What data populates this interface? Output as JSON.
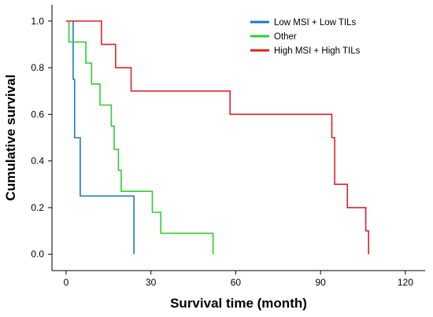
{
  "chart_data": {
    "type": "line",
    "step": true,
    "xlabel": "Survival time (month)",
    "ylabel": "Cumulative survival",
    "xlim": [
      -5,
      127
    ],
    "ylim": [
      -0.07,
      1.07
    ],
    "xticks": [
      0,
      30,
      60,
      90,
      120
    ],
    "yticks": [
      0.0,
      0.2,
      0.4,
      0.6,
      0.8,
      1.0
    ],
    "xtick_labels": [
      "0",
      "30",
      "60",
      "90",
      "120"
    ],
    "ytick_labels": [
      "0.0",
      "0.2",
      "0.4",
      "0.6",
      "0.8",
      "1.0"
    ],
    "grid": false,
    "legend_position": "top-right",
    "series": [
      {
        "name": "Low MSI + Low TILs",
        "color": "#1f77c4",
        "points": [
          [
            0,
            1.0
          ],
          [
            2.5,
            1.0
          ],
          [
            2.5,
            0.75
          ],
          [
            3,
            0.75
          ],
          [
            3,
            0.5
          ],
          [
            5,
            0.5
          ],
          [
            5,
            0.25
          ],
          [
            24,
            0.25
          ],
          [
            24,
            0.0
          ]
        ]
      },
      {
        "name": "Other",
        "color": "#33cc33",
        "points": [
          [
            1,
            1.0
          ],
          [
            1,
            0.91
          ],
          [
            7,
            0.91
          ],
          [
            7,
            0.82
          ],
          [
            9,
            0.82
          ],
          [
            9,
            0.73
          ],
          [
            12,
            0.73
          ],
          [
            12,
            0.64
          ],
          [
            16,
            0.64
          ],
          [
            16,
            0.55
          ],
          [
            17,
            0.55
          ],
          [
            17,
            0.45
          ],
          [
            18.5,
            0.45
          ],
          [
            18.5,
            0.36
          ],
          [
            19.5,
            0.36
          ],
          [
            19.5,
            0.27
          ],
          [
            30.5,
            0.27
          ],
          [
            30.5,
            0.18
          ],
          [
            33.5,
            0.18
          ],
          [
            33.5,
            0.09
          ],
          [
            52,
            0.09
          ],
          [
            52,
            0.0
          ]
        ]
      },
      {
        "name": "High MSI + High TILs",
        "color": "#e0202a",
        "points": [
          [
            0,
            1.0
          ],
          [
            12.5,
            1.0
          ],
          [
            12.5,
            0.9
          ],
          [
            17.5,
            0.9
          ],
          [
            17.5,
            0.8
          ],
          [
            23,
            0.8
          ],
          [
            23,
            0.7
          ],
          [
            58,
            0.7
          ],
          [
            58,
            0.6
          ],
          [
            94,
            0.6
          ],
          [
            94,
            0.5
          ],
          [
            95,
            0.5
          ],
          [
            95,
            0.3
          ],
          [
            99.5,
            0.3
          ],
          [
            99.5,
            0.2
          ],
          [
            106,
            0.2
          ],
          [
            106,
            0.1
          ],
          [
            107,
            0.1
          ],
          [
            107,
            0.0
          ]
        ]
      }
    ]
  }
}
